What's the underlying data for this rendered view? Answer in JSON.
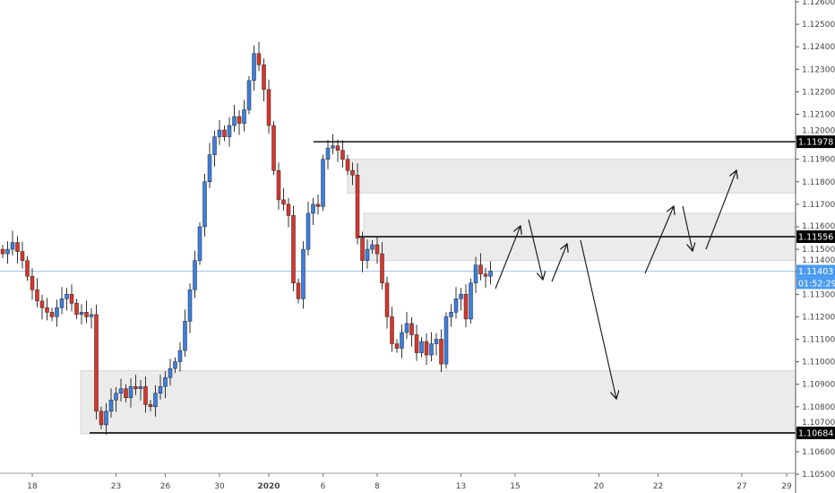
{
  "chart_data": {
    "type": "candlestick",
    "title": "",
    "xlabel": "",
    "ylabel": "",
    "ylim": [
      1.105,
      1.126
    ],
    "y_ticks": [
      "1.12600",
      "1.12500",
      "1.12400",
      "1.12300",
      "1.12200",
      "1.12100",
      "1.12000",
      "1.11900",
      "1.11800",
      "1.11700",
      "1.11600",
      "1.11500",
      "1.11400",
      "1.11300",
      "1.11200",
      "1.11100",
      "1.11000",
      "1.10900",
      "1.10800",
      "1.10700",
      "1.10600",
      "1.10500"
    ],
    "y_tick_values": [
      1.126,
      1.125,
      1.124,
      1.123,
      1.122,
      1.121,
      1.12,
      1.119,
      1.118,
      1.117,
      1.116,
      1.115,
      1.114,
      1.113,
      1.112,
      1.111,
      1.11,
      1.109,
      1.108,
      1.107,
      1.106,
      1.105
    ],
    "x_ticks": [
      "18",
      "23",
      "26",
      "30",
      "2020",
      "6",
      "8",
      "13",
      "15",
      "20",
      "22",
      "27",
      "29"
    ],
    "x_tick_candle_index": [
      6,
      23,
      33,
      44,
      54,
      65,
      76,
      93,
      104,
      121,
      133,
      150,
      161
    ],
    "closes": [
      1.1148,
      1.115,
      1.1153,
      1.1149,
      1.1145,
      1.1138,
      1.1132,
      1.1127,
      1.1124,
      1.1122,
      1.112,
      1.1124,
      1.1128,
      1.113,
      1.1126,
      1.1121,
      1.1122,
      1.112,
      1.1121,
      1.1078,
      1.1072,
      1.1078,
      1.1083,
      1.1086,
      1.1088,
      1.1084,
      1.1089,
      1.1088,
      1.1089,
      1.1081,
      1.108,
      1.1086,
      1.1089,
      1.1093,
      1.1097,
      1.11,
      1.1105,
      1.1118,
      1.1132,
      1.1145,
      1.116,
      1.118,
      1.1192,
      1.12,
      1.1203,
      1.12,
      1.1205,
      1.1209,
      1.1206,
      1.1212,
      1.1225,
      1.1237,
      1.1232,
      1.1221,
      1.1205,
      1.1185,
      1.1172,
      1.117,
      1.1165,
      1.1135,
      1.1128,
      1.115,
      1.1166,
      1.117,
      1.1169,
      1.119,
      1.1195,
      1.1196,
      1.1194,
      1.119,
      1.1185,
      1.1183,
      1.1155,
      1.1145,
      1.115,
      1.1152,
      1.1148,
      1.1135,
      1.112,
      1.1108,
      1.1106,
      1.1113,
      1.1117,
      1.1112,
      1.1104,
      1.1109,
      1.1103,
      1.1108,
      1.111,
      1.1099,
      1.112,
      1.1122,
      1.1128,
      1.113,
      1.1119,
      1.1135,
      1.1143,
      1.1139,
      1.1138,
      1.11403
    ],
    "levels": [
      {
        "price": 1.11978,
        "label": "1.11978"
      },
      {
        "price": 1.11556,
        "label": "1.11556"
      },
      {
        "price": 1.10684,
        "label": "1.10684"
      }
    ],
    "zones": [
      {
        "top": 1.1096,
        "bottom": 1.1068
      },
      {
        "top": 1.119,
        "bottom": 1.1175
      },
      {
        "top": 1.1166,
        "bottom": 1.1145
      }
    ],
    "current_price": {
      "price": 1.11403,
      "label": "1.11403",
      "countdown": "01:52:29"
    },
    "colors": {
      "up": "#3d7fe0",
      "down": "#d9362b",
      "wick": "#333333",
      "current": "#4a9bf0",
      "level_bg": "#000000",
      "zone": "#e6e6e6"
    }
  }
}
